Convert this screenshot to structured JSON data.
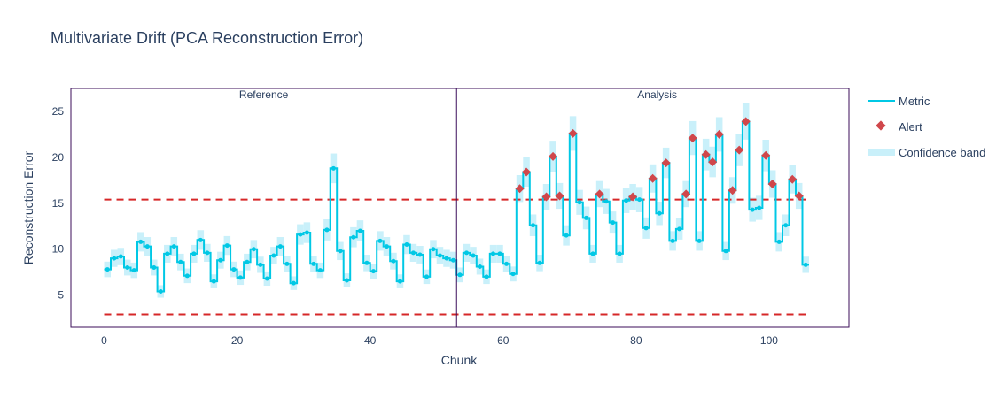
{
  "chart_data": {
    "type": "line",
    "title": "Multivariate Drift (PCA Reconstruction Error)",
    "xlabel": "Chunk",
    "ylabel": "Reconstruction Error",
    "xlim": [
      -5,
      112
    ],
    "ylim": [
      1.5,
      27.5
    ],
    "xticks": [
      0,
      20,
      40,
      60,
      80,
      100
    ],
    "yticks": [
      5,
      10,
      15,
      20,
      25
    ],
    "grid": false,
    "legend_position": "right",
    "periods": [
      {
        "label": "Reference",
        "start": 0,
        "end": 52
      },
      {
        "label": "Analysis",
        "start": 53,
        "end": 105
      }
    ],
    "period_boundary": 53,
    "thresholds": {
      "upper": 15.4,
      "lower": 2.9
    },
    "series": [
      {
        "name": "Metric",
        "color": "#00c8e5",
        "values": [
          7.8,
          9.0,
          9.2,
          8.0,
          7.7,
          10.8,
          10.3,
          8.0,
          5.4,
          9.5,
          10.3,
          8.6,
          7.1,
          9.5,
          11.0,
          9.6,
          6.5,
          8.8,
          10.4,
          7.8,
          6.9,
          8.6,
          10.0,
          8.3,
          6.8,
          9.3,
          10.3,
          8.4,
          6.3,
          11.6,
          11.8,
          8.4,
          7.7,
          12.1,
          18.8,
          9.8,
          6.6,
          11.3,
          12.0,
          8.5,
          7.6,
          10.9,
          10.3,
          8.7,
          6.5,
          10.5,
          9.6,
          9.4,
          7.0,
          10.0,
          9.3,
          9.0,
          8.8,
          7.2,
          9.6,
          9.3,
          8.1,
          7.0,
          9.5,
          9.5,
          8.4,
          7.3,
          16.6,
          18.4,
          12.6,
          8.5,
          15.7,
          20.1,
          15.8,
          11.5,
          22.6,
          15.1,
          13.4,
          9.5,
          16.0,
          15.2,
          12.9,
          9.5,
          15.3,
          15.7,
          15.4,
          12.3,
          17.7,
          13.9,
          19.4,
          10.9,
          12.2,
          16.0,
          22.1,
          10.9,
          20.3,
          19.5,
          22.5,
          9.8,
          16.4,
          20.8,
          23.9,
          14.3,
          14.5,
          20.2,
          17.1,
          10.8,
          12.6,
          17.6,
          15.8,
          8.3
        ]
      },
      {
        "name": "Alert",
        "color": "#d0474b",
        "x": [
          62,
          63,
          66,
          67,
          68,
          70,
          74,
          79,
          82,
          84,
          87,
          88,
          90,
          91,
          92,
          94,
          95,
          96,
          99,
          100,
          103,
          104
        ],
        "values": [
          16.6,
          18.4,
          15.7,
          20.1,
          15.8,
          22.6,
          16.0,
          15.7,
          17.7,
          19.4,
          16.0,
          22.1,
          20.3,
          19.5,
          22.5,
          16.4,
          20.8,
          23.9,
          20.2,
          17.1,
          17.6,
          15.8
        ]
      },
      {
        "name": "Confidence band",
        "color": "#c9f0fa"
      }
    ]
  }
}
